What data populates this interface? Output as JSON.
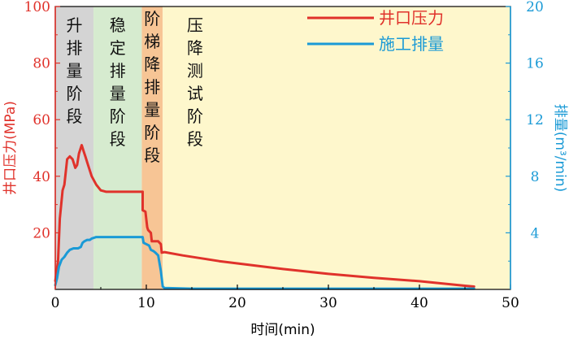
{
  "chart_data": {
    "type": "line",
    "x_axis": {
      "label": "时间(min)",
      "range": [
        0,
        50
      ],
      "ticks": [
        0,
        10,
        20,
        30,
        40,
        50
      ],
      "tick_labels": [
        "0",
        "10",
        "20",
        "30",
        "40",
        "50"
      ]
    },
    "y_axis_left": {
      "label": "井口压力(MPa)",
      "range": [
        0,
        100
      ],
      "ticks": [
        0,
        20,
        40,
        60,
        80,
        100
      ],
      "tick_labels": [
        "20",
        "40",
        "60",
        "80",
        "100"
      ],
      "color": "#e0322b"
    },
    "y_axis_right": {
      "label": "排量(m³/min)",
      "range": [
        0,
        20
      ],
      "ticks": [
        0,
        4,
        8,
        12,
        16,
        20
      ],
      "tick_labels": [
        "4",
        "8",
        "12",
        "16",
        "20"
      ],
      "color": "#1a9ad6"
    },
    "stages": [
      {
        "label": "升排量阶段",
        "x_start": 0,
        "x_end": 4.2,
        "color": "#d4d4d4"
      },
      {
        "label": "稳定排量阶段",
        "x_start": 4.2,
        "x_end": 9.5,
        "color": "#d6ebcf"
      },
      {
        "label": "阶梯降排量阶段",
        "x_start": 9.5,
        "x_end": 11.8,
        "color": "#f7c595"
      },
      {
        "label": "压降测试阶段",
        "x_start": 11.8,
        "x_end": 50,
        "color": "#fef7cc"
      }
    ],
    "series": [
      {
        "name": "井口压力",
        "axis": "left",
        "color": "#e0322b",
        "x": [
          0,
          0.3,
          0.5,
          0.8,
          1.0,
          1.3,
          1.6,
          1.9,
          2.2,
          2.4,
          2.6,
          2.9,
          3.1,
          3.3,
          3.6,
          4.0,
          4.5,
          5.0,
          5.6,
          6.0,
          6.5,
          7.0,
          8.0,
          9.0,
          9.6,
          9.6,
          9.9,
          10.1,
          10.2,
          10.5,
          10.6,
          11.0,
          11.3,
          11.6,
          11.7,
          12.0,
          14.0,
          16.0,
          18.0,
          20.0,
          25.0,
          30.0,
          35.0,
          40.0,
          45.0,
          46.0
        ],
        "y": [
          3,
          10,
          25,
          35,
          37,
          46,
          47,
          46,
          43,
          44,
          48,
          51,
          49,
          47,
          44,
          40,
          37,
          35,
          34.5,
          34.5,
          34.5,
          34.5,
          34.5,
          34.5,
          34.5,
          28,
          27.5,
          22,
          21,
          20,
          17,
          17,
          17,
          16,
          13,
          13.2,
          12,
          11,
          10,
          9.2,
          7.2,
          5.5,
          4.1,
          2.9,
          1.3,
          1.0
        ]
      },
      {
        "name": "施工排量",
        "axis": "right",
        "color": "#1a9ad6",
        "x": [
          0,
          0.2,
          0.4,
          0.7,
          1.0,
          1.3,
          1.6,
          2.0,
          2.5,
          2.8,
          3.0,
          3.2,
          3.5,
          3.8,
          4.0,
          4.5,
          5.0,
          6.0,
          7.0,
          8.0,
          9.0,
          9.6,
          9.7,
          10.0,
          10.3,
          10.5,
          10.8,
          11.0,
          11.3,
          11.6,
          11.8,
          12.0,
          15.0,
          20.0,
          30.0,
          40.0,
          46.0
        ],
        "y": [
          0.3,
          0.8,
          1.6,
          2.1,
          2.3,
          2.6,
          2.8,
          2.9,
          2.9,
          3.0,
          3.3,
          3.4,
          3.5,
          3.5,
          3.6,
          3.7,
          3.7,
          3.7,
          3.7,
          3.7,
          3.7,
          3.7,
          3.3,
          3.2,
          3.1,
          2.8,
          2.7,
          2.6,
          2.4,
          1.3,
          0.2,
          0.1,
          0.05,
          0.05,
          0.05,
          0.05,
          0.05
        ]
      }
    ],
    "legend": {
      "placement": "top-right",
      "entries": [
        "井口压力",
        "施工排量"
      ]
    },
    "grid": false
  }
}
